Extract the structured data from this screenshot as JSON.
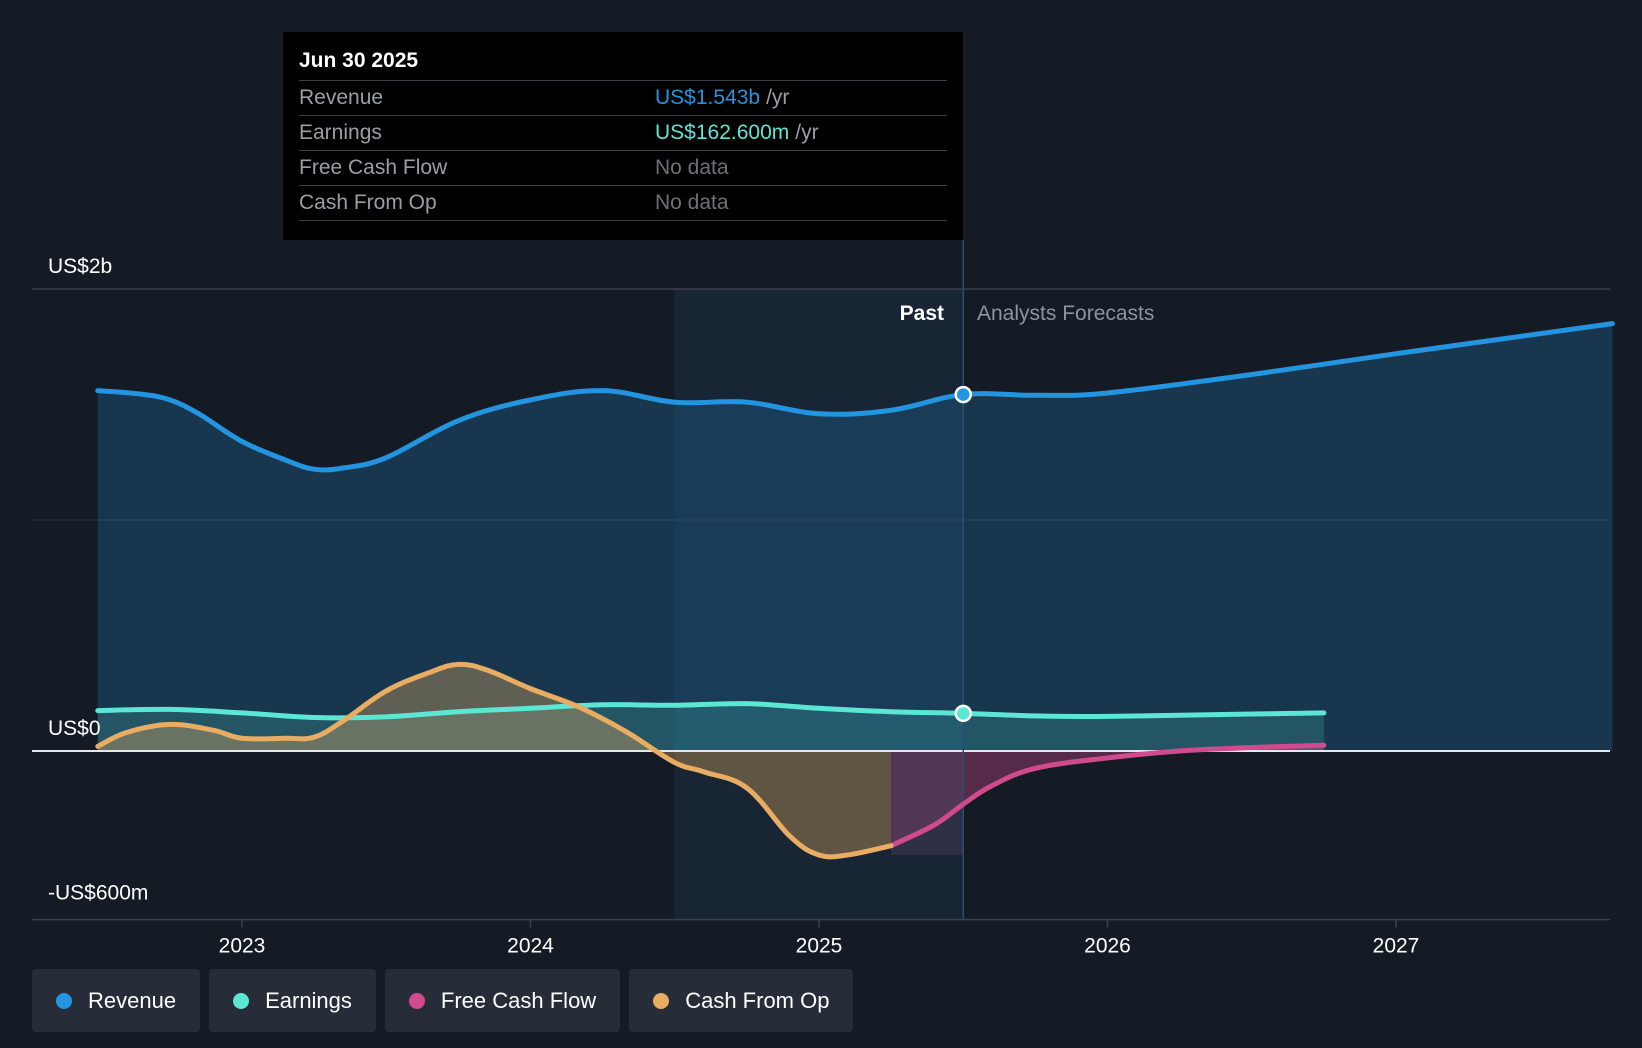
{
  "tooltip": {
    "date": "Jun 30 2025",
    "rows": [
      {
        "label": "Revenue",
        "value": "US$1.543b",
        "unit": "/yr",
        "color": "#2394df"
      },
      {
        "label": "Earnings",
        "value": "US$162.600m",
        "unit": "/yr",
        "color": "#5ce6d4"
      },
      {
        "label": "Free Cash Flow",
        "value": "No data",
        "unit": "",
        "color": "#6e7178"
      },
      {
        "label": "Cash From Op",
        "value": "No data",
        "unit": "",
        "color": "#6e7178"
      }
    ]
  },
  "section_labels": {
    "past": "Past",
    "forecast": "Analysts Forecasts"
  },
  "legend": [
    {
      "label": "Revenue",
      "color": "#2394df"
    },
    {
      "label": "Earnings",
      "color": "#5ce6d4"
    },
    {
      "label": "Free Cash Flow",
      "color": "#d04a8e"
    },
    {
      "label": "Cash From Op",
      "color": "#e8ad62"
    }
  ],
  "chart_data": {
    "type": "line",
    "title": "",
    "ylabel": "",
    "xlabel": "",
    "ylim": [
      -600,
      2000
    ],
    "xlim": [
      2022.22,
      2027.75
    ],
    "y_tick_labels": [
      {
        "value": 2000,
        "label": "US$2b"
      },
      {
        "value": 0,
        "label": "US$0"
      },
      {
        "value": -600,
        "label": "-US$600m"
      }
    ],
    "gridlines": [
      2000,
      1000,
      0
    ],
    "x_ticks": [
      2023,
      2024,
      2025,
      2026,
      2027
    ],
    "past_shade_range": [
      2024.5,
      2025.5
    ],
    "divider_x": 2025.5,
    "fcf_shade_range": [
      2025.25,
      2025.5
    ],
    "series": [
      {
        "name": "Revenue",
        "color": "#2394df",
        "fill": true,
        "marker_x": 2025.5,
        "x": [
          2022.5,
          2022.65,
          2022.75,
          2022.85,
          2023.0,
          2023.15,
          2023.25,
          2023.35,
          2023.5,
          2023.75,
          2024.0,
          2024.25,
          2024.5,
          2024.75,
          2025.0,
          2025.25,
          2025.5,
          2025.75,
          2026.0,
          2026.5,
          2027.0,
          2027.75
        ],
        "values": [
          1560,
          1545,
          1520,
          1460,
          1340,
          1260,
          1220,
          1225,
          1270,
          1430,
          1520,
          1560,
          1510,
          1510,
          1460,
          1475,
          1543,
          1540,
          1550,
          1630,
          1720,
          1850
        ]
      },
      {
        "name": "Earnings",
        "color": "#5ce6d4",
        "fill": true,
        "marker_x": 2025.5,
        "x": [
          2022.5,
          2022.75,
          2023.0,
          2023.25,
          2023.5,
          2023.75,
          2024.0,
          2024.25,
          2024.5,
          2024.75,
          2025.0,
          2025.25,
          2025.5,
          2025.75,
          2026.0,
          2026.5,
          2026.75
        ],
        "values": [
          175,
          180,
          165,
          145,
          148,
          170,
          185,
          200,
          198,
          205,
          185,
          170,
          163,
          152,
          150,
          160,
          165
        ]
      },
      {
        "name": "Free Cash Flow",
        "color": "#d04a8e",
        "fill": true,
        "x": [
          2025.25,
          2025.4,
          2025.5,
          2025.6,
          2025.75,
          2026.0,
          2026.25,
          2026.5,
          2026.75
        ],
        "values": [
          -410,
          -320,
          -230,
          -150,
          -75,
          -30,
          0,
          15,
          25
        ]
      },
      {
        "name": "Cash From Op",
        "color": "#e8ad62",
        "fill": true,
        "x": [
          2022.5,
          2022.6,
          2022.75,
          2022.9,
          2023.0,
          2023.15,
          2023.25,
          2023.35,
          2023.5,
          2023.65,
          2023.75,
          2023.85,
          2024.0,
          2024.15,
          2024.25,
          2024.35,
          2024.5,
          2024.6,
          2024.75,
          2024.9,
          2025.0,
          2025.1,
          2025.25
        ],
        "values": [
          20,
          80,
          115,
          90,
          55,
          55,
          60,
          130,
          260,
          340,
          375,
          350,
          270,
          200,
          140,
          70,
          -50,
          -90,
          -160,
          -370,
          -450,
          -450,
          -410
        ]
      }
    ]
  }
}
